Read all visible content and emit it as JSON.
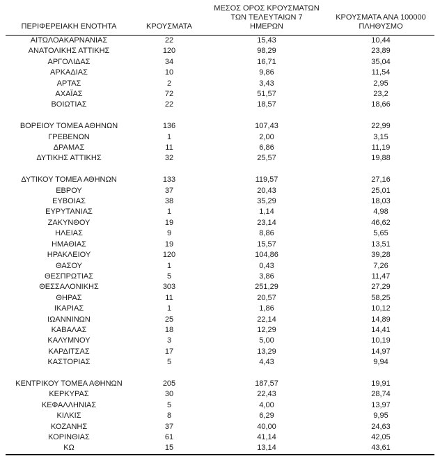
{
  "table": {
    "headers": {
      "region": "ΠΕΡΙΦΕΡΕΙΑΚΗ ΕΝΟΤΗΤΑ",
      "cases": "ΚΡΟΥΣΜΑΤΑ",
      "avg7_lines": [
        "ΜΕΣΟΣ ΟΡΟΣ ΚΡΟΥΣΜΑΤΩΝ",
        "ΤΩΝ ΤΕΛΕΥΤΑΙΩΝ 7",
        "ΗΜΕΡΩΝ"
      ],
      "per100k_lines": [
        "ΚΡΟΥΣΜΑΤΑ ΑΝΑ 100000",
        "ΠΛΗΘΥΣΜΟ"
      ]
    },
    "rows": [
      {
        "region": "ΑΙΤΩΛΟΑΚΑΡΝΑΝΙΑΣ",
        "cases": "22",
        "avg7": "15,43",
        "per100k": "10,44"
      },
      {
        "region": "ΑΝΑΤΟΛΙΚΗΣ ΑΤΤΙΚΗΣ",
        "cases": "120",
        "avg7": "98,29",
        "per100k": "23,89"
      },
      {
        "region": "ΑΡΓΟΛΙΔΑΣ",
        "cases": "34",
        "avg7": "16,71",
        "per100k": "35,04"
      },
      {
        "region": "ΑΡΚΑΔΙΑΣ",
        "cases": "10",
        "avg7": "9,86",
        "per100k": "11,54"
      },
      {
        "region": "ΑΡΤΑΣ",
        "cases": "2",
        "avg7": "3,43",
        "per100k": "2,95"
      },
      {
        "region": "ΑΧΑΪΑΣ",
        "cases": "72",
        "avg7": "51,57",
        "per100k": "23,2"
      },
      {
        "region": "ΒΟΙΩΤΙΑΣ",
        "cases": "22",
        "avg7": "18,57",
        "per100k": "18,66"
      },
      {
        "spacer": true
      },
      {
        "region": "ΒΟΡΕΙΟΥ ΤΟΜΕΑ ΑΘΗΝΩΝ",
        "cases": "136",
        "avg7": "107,43",
        "per100k": "22,99"
      },
      {
        "region": "ΓΡΕΒΕΝΩΝ",
        "cases": "1",
        "avg7": "2,00",
        "per100k": "3,15"
      },
      {
        "region": "ΔΡΑΜΑΣ",
        "cases": "11",
        "avg7": "6,86",
        "per100k": "11,19"
      },
      {
        "region": "ΔΥΤΙΚΗΣ ΑΤΤΙΚΗΣ",
        "cases": "32",
        "avg7": "25,57",
        "per100k": "19,88"
      },
      {
        "spacer": true
      },
      {
        "region": "ΔΥΤΙΚΟΥ ΤΟΜΕΑ ΑΘΗΝΩΝ",
        "cases": "133",
        "avg7": "119,57",
        "per100k": "27,16"
      },
      {
        "region": "ΕΒΡΟΥ",
        "cases": "37",
        "avg7": "20,43",
        "per100k": "25,01"
      },
      {
        "region": "ΕΥΒΟΙΑΣ",
        "cases": "38",
        "avg7": "35,29",
        "per100k": "18,03"
      },
      {
        "region": "ΕΥΡΥΤΑΝΙΑΣ",
        "cases": "1",
        "avg7": "1,14",
        "per100k": "4,98"
      },
      {
        "region": "ΖΑΚΥΝΘΟΥ",
        "cases": "19",
        "avg7": "23,14",
        "per100k": "46,62"
      },
      {
        "region": "ΗΛΕΙΑΣ",
        "cases": "9",
        "avg7": "8,86",
        "per100k": "5,65"
      },
      {
        "region": "ΗΜΑΘΙΑΣ",
        "cases": "19",
        "avg7": "15,57",
        "per100k": "13,51"
      },
      {
        "region": "ΗΡΑΚΛΕΙΟΥ",
        "cases": "120",
        "avg7": "104,86",
        "per100k": "39,28"
      },
      {
        "region": "ΘΑΣΟΥ",
        "cases": "1",
        "avg7": "0,43",
        "per100k": "7,26"
      },
      {
        "region": "ΘΕΣΠΡΩΤΙΑΣ",
        "cases": "5",
        "avg7": "3,86",
        "per100k": "11,47"
      },
      {
        "region": "ΘΕΣΣΑΛΟΝΙΚΗΣ",
        "cases": "303",
        "avg7": "251,29",
        "per100k": "27,29"
      },
      {
        "region": "ΘΗΡΑΣ",
        "cases": "11",
        "avg7": "20,57",
        "per100k": "58,25"
      },
      {
        "region": "ΙΚΑΡΙΑΣ",
        "cases": "1",
        "avg7": "1,86",
        "per100k": "10,12"
      },
      {
        "region": "ΙΩΑΝΝΙΝΩΝ",
        "cases": "25",
        "avg7": "22,14",
        "per100k": "14,89"
      },
      {
        "region": "ΚΑΒΑΛΑΣ",
        "cases": "18",
        "avg7": "12,29",
        "per100k": "14,41"
      },
      {
        "region": "ΚΑΛΥΜΝΟΥ",
        "cases": "3",
        "avg7": "5,00",
        "per100k": "10,19"
      },
      {
        "region": "ΚΑΡΔΙΤΣΑΣ",
        "cases": "17",
        "avg7": "13,29",
        "per100k": "14,97"
      },
      {
        "region": "ΚΑΣΤΟΡΙΑΣ",
        "cases": "5",
        "avg7": "4,43",
        "per100k": "9,94"
      },
      {
        "spacer": true
      },
      {
        "region": "ΚΕΝΤΡΙΚΟΥ ΤΟΜΕΑ ΑΘΗΝΩΝ",
        "cases": "205",
        "avg7": "187,57",
        "per100k": "19,91"
      },
      {
        "region": "ΚΕΡΚΥΡΑΣ",
        "cases": "30",
        "avg7": "22,43",
        "per100k": "28,74"
      },
      {
        "region": "ΚΕΦΑΛΛΗΝΙΑΣ",
        "cases": "5",
        "avg7": "4,00",
        "per100k": "13,97"
      },
      {
        "region": "ΚΙΛΚΙΣ",
        "cases": "8",
        "avg7": "6,29",
        "per100k": "9,95"
      },
      {
        "region": "ΚΟΖΑΝΗΣ",
        "cases": "37",
        "avg7": "40,00",
        "per100k": "24,63"
      },
      {
        "region": "ΚΟΡΙΝΘΙΑΣ",
        "cases": "61",
        "avg7": "41,14",
        "per100k": "42,05"
      },
      {
        "region": "ΚΩ",
        "cases": "15",
        "avg7": "13,14",
        "per100k": "43,61"
      }
    ]
  }
}
